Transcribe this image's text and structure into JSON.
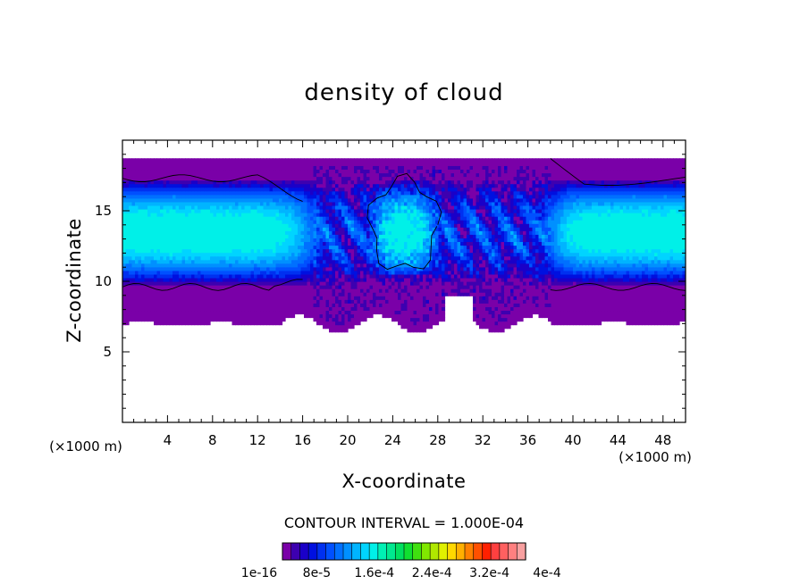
{
  "chart_data": {
    "type": "heatmap",
    "title": "density of cloud",
    "xlabel": "X-coordinate",
    "ylabel": "Z-coordinate",
    "x_unit": "(×1000 m)",
    "y_unit": "(×1000 m)",
    "xlim": [
      0,
      50
    ],
    "ylim": [
      0,
      20
    ],
    "x_ticks": [
      4,
      8,
      12,
      16,
      20,
      24,
      28,
      32,
      36,
      40,
      44,
      48
    ],
    "y_ticks": [
      5,
      10,
      15
    ],
    "contour_interval_label": "CONTOUR INTERVAL = 1.000E-04",
    "colorbar": {
      "range": [
        1e-16,
        0.0004
      ],
      "tick_labels": [
        "1e-16",
        "8e-5",
        "1.6e-4",
        "2.4e-4",
        "3.2e-4",
        "4e-4"
      ],
      "colors": [
        "#7a00a8",
        "#3d00b0",
        "#1a00c8",
        "#0010e0",
        "#0030f0",
        "#0050ff",
        "#0070ff",
        "#0090ff",
        "#00b4ff",
        "#00d4ff",
        "#00f0e8",
        "#00f0b4",
        "#00e890",
        "#00e060",
        "#10e030",
        "#40e010",
        "#80e800",
        "#b0e800",
        "#e0f000",
        "#ffd800",
        "#ffb000",
        "#ff8000",
        "#ff5000",
        "#ff2000",
        "#ff4040",
        "#ff6060",
        "#ff8080",
        "#f8a0a0"
      ]
    },
    "field_model": {
      "cloud_base_km": 7,
      "cloud_top_km": 18.8,
      "core_center_km": 13.5,
      "left_core_x_range_km": [
        0,
        17
      ],
      "central_core_x_range_km": [
        22,
        28
      ],
      "right_core_x_range_km": [
        38,
        50
      ]
    }
  }
}
